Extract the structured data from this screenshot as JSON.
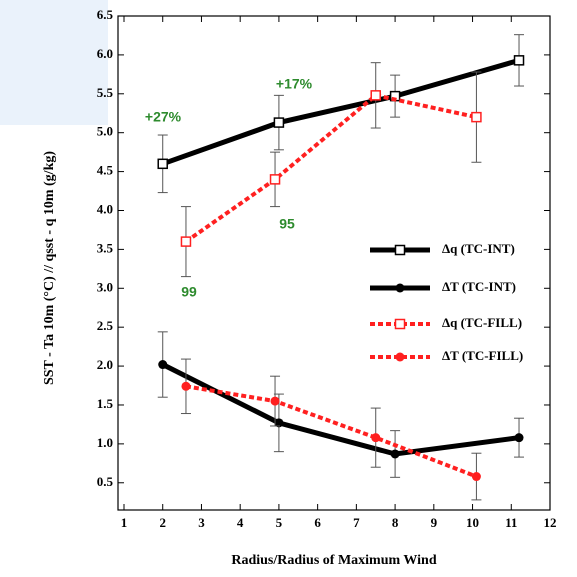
{
  "chart_data": {
    "type": "line",
    "xlabel": "Radius/Radius of Maximum Wind",
    "ylabel": "SST - Ta 10m (°C)  // qsst - q 10m (g/kg)",
    "xlim": [
      1,
      12
    ],
    "xticks": [
      1,
      2,
      3,
      4,
      5,
      6,
      7,
      8,
      9,
      10,
      11,
      12
    ],
    "ylim": [
      0.15,
      6.5
    ],
    "yticks": [
      0.5,
      {
        "value": 1,
        "label": "1.0"
      },
      1.5,
      {
        "value": 2,
        "label": "2.0"
      },
      2.5,
      {
        "value": 3,
        "label": "3.0"
      },
      3.5,
      {
        "value": 4,
        "label": "4.0"
      },
      4.5,
      {
        "value": 5,
        "label": "5.0"
      },
      5.5,
      {
        "value": 6,
        "label": "6.0"
      },
      6.5
    ],
    "series": [
      {
        "name": "Δq (TC-INT)",
        "color": "#000000",
        "marker": "square",
        "dashed": false,
        "x": [
          2,
          5,
          8,
          11.2
        ],
        "values": [
          4.6,
          5.13,
          5.47,
          5.93
        ],
        "errors": [
          0.37,
          0.35,
          0.27,
          0.33
        ]
      },
      {
        "name": "ΔT (TC-INT)",
        "color": "#000000",
        "marker": "circle",
        "dashed": false,
        "x": [
          2,
          5,
          8,
          11.2
        ],
        "values": [
          2.02,
          1.27,
          0.87,
          1.08
        ],
        "errors": [
          0.42,
          0.37,
          0.3,
          0.25
        ]
      },
      {
        "name": "Δq (TC-FILL)",
        "color": "#ff2020",
        "marker": "square",
        "dashed": true,
        "x": [
          2.6,
          4.9,
          7.5,
          10.1
        ],
        "values": [
          3.6,
          4.4,
          5.48,
          5.2
        ],
        "errors": [
          0.45,
          0.35,
          0.42,
          0.58
        ]
      },
      {
        "name": "ΔT (TC-FILL)",
        "color": "#ff2020",
        "marker": "circle",
        "dashed": true,
        "x": [
          2.6,
          4.9,
          7.5,
          10.1
        ],
        "values": [
          1.74,
          1.55,
          1.08,
          0.58
        ],
        "errors": [
          0.35,
          0.32,
          0.38,
          0.3
        ]
      }
    ],
    "annotations": [
      "+27%",
      "+17%",
      "95",
      "99"
    ]
  }
}
